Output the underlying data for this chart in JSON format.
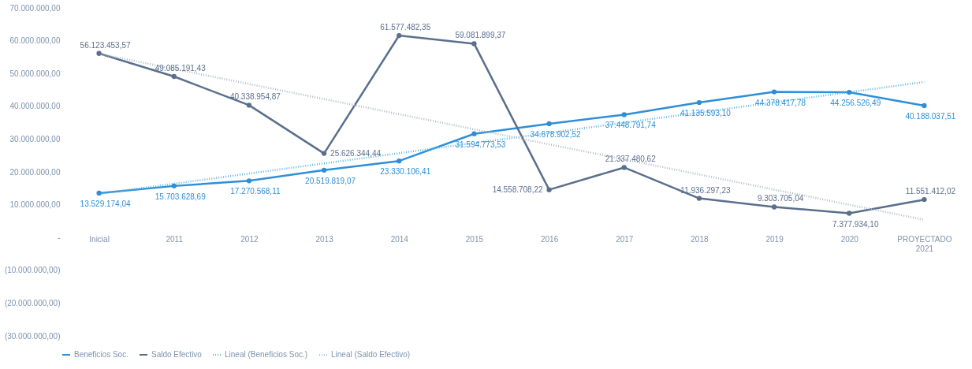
{
  "chart_data": {
    "type": "line",
    "categories": [
      "Inicial",
      "2011",
      "2012",
      "2013",
      "2014",
      "2015",
      "2016",
      "2017",
      "2018",
      "2019",
      "2020",
      "PROYECTADO\n2021"
    ],
    "ylim": [
      -30000000,
      70000000
    ],
    "yticks": [
      {
        "value": -30000000,
        "label": "(30.000.000,00)"
      },
      {
        "value": -20000000,
        "label": "(20.000.000,00)"
      },
      {
        "value": -10000000,
        "label": "(10.000.000,00)"
      },
      {
        "value": 0,
        "label": "-"
      },
      {
        "value": 10000000,
        "label": "10.000.000,00"
      },
      {
        "value": 20000000,
        "label": "20.000.000,00"
      },
      {
        "value": 30000000,
        "label": "30.000.000,00"
      },
      {
        "value": 40000000,
        "label": "40.000.000,00"
      },
      {
        "value": 50000000,
        "label": "50.000.000,00"
      },
      {
        "value": 60000000,
        "label": "60.000.000,00"
      },
      {
        "value": 70000000,
        "label": "70.000.000,00"
      }
    ],
    "series": [
      {
        "name": "Beneficios Soc.",
        "color": "#2e8fd8",
        "marker": "circle",
        "line_style": "solid",
        "values": [
          13529174.04,
          15703628.69,
          17270568.11,
          20519819.07,
          23330106.41,
          31594773.53,
          34678902.52,
          37448791.74,
          41135593.1,
          44378417.78,
          44256526.49,
          40188037.51
        ],
        "value_labels": [
          "13.529.174,04",
          "15.703.628,69",
          "17.270.568,11",
          "20.519.819,07",
          "23.330.106,41",
          "31.594.773,53",
          "34.678.902,52",
          "37.448.791,74",
          "41.135.593,10",
          "44.378.417,78",
          "44.256.526,49",
          "40.188.037,51"
        ]
      },
      {
        "name": "Saldo Efectivo",
        "color": "#5a6f8c",
        "marker": "circle",
        "line_style": "solid",
        "values": [
          56123453.57,
          49085191.43,
          40338954.87,
          25626344.44,
          61577482.35,
          59081899.37,
          14558708.22,
          21337480.62,
          11936297.23,
          9303705.04,
          7377934.1,
          11551412.02
        ],
        "value_labels": [
          "56.123.453,57",
          "49.085.191,43",
          "40.338.954,87",
          "25.626.344,44",
          "61.577.482,35",
          "59.081.899,37",
          "14.558.708,22",
          "21.337.480,62",
          "11.936.297,23",
          "9.303.705,04",
          "7.377.934,10",
          "11.551.412,02"
        ]
      },
      {
        "name": "Lineal (Beneficios Soc.)",
        "type": "line",
        "color": "#5bb8e0",
        "marker": "none",
        "line_style": "dotted",
        "values": [
          13300000,
          16400000,
          19500000,
          22600000,
          25700000,
          28800000,
          31900000,
          35000000,
          38100000,
          41200000,
          44300000,
          47400000
        ]
      },
      {
        "name": "Lineal (Saldo Efectivo)",
        "type": "line",
        "color": "#b0b8c4",
        "marker": "none",
        "line_style": "dotted",
        "values": [
          56000000,
          51400000,
          46800000,
          42200000,
          37600000,
          33000000,
          28400000,
          23800000,
          19200000,
          14600000,
          10000000,
          5400000
        ]
      }
    ],
    "legend": "bottom"
  }
}
